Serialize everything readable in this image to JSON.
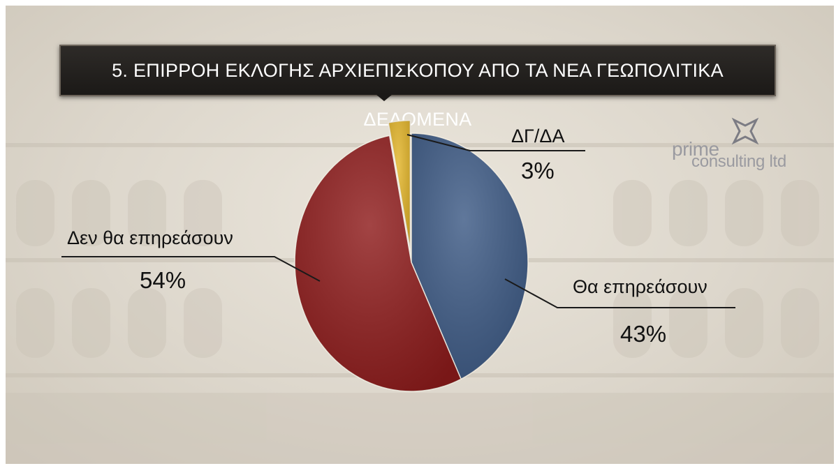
{
  "header": {
    "title": "5. ΕΠΙΡΡΟΗ ΕΚΛΟΓΗΣ ΑΡΧΙΕΠΙΣΚΟΠΟΥ ΑΠΟ ΤΑ ΝΕΑ ΓΕΩΠΟΛΙΤΙΚΑ ΔΕΔΟΜΕΝΑ"
  },
  "logo": {
    "line1": "prime",
    "line2": "consulting ltd"
  },
  "chart_data": {
    "type": "pie",
    "title": "5. ΕΠΙΡΡΟΗ ΕΚΛΟΓΗΣ ΑΡΧΙΕΠΙΣΚΟΠΟΥ ΑΠΟ ΤΑ ΝΕΑ ΓΕΩΠΟΛΙΤΙΚΑ ΔΕΔΟΜΕΝΑ",
    "slices": [
      {
        "label": "Θα επηρεάσουν",
        "value": 43,
        "value_label": "43%",
        "color": "#3d5a85"
      },
      {
        "label": "Δεν θα επηρεάσουν",
        "value": 54,
        "value_label": "54%",
        "color": "#8e1b1b"
      },
      {
        "label": "ΔΓ/ΔΑ",
        "value": 3,
        "value_label": "3%",
        "color": "#e3b52a"
      }
    ]
  }
}
